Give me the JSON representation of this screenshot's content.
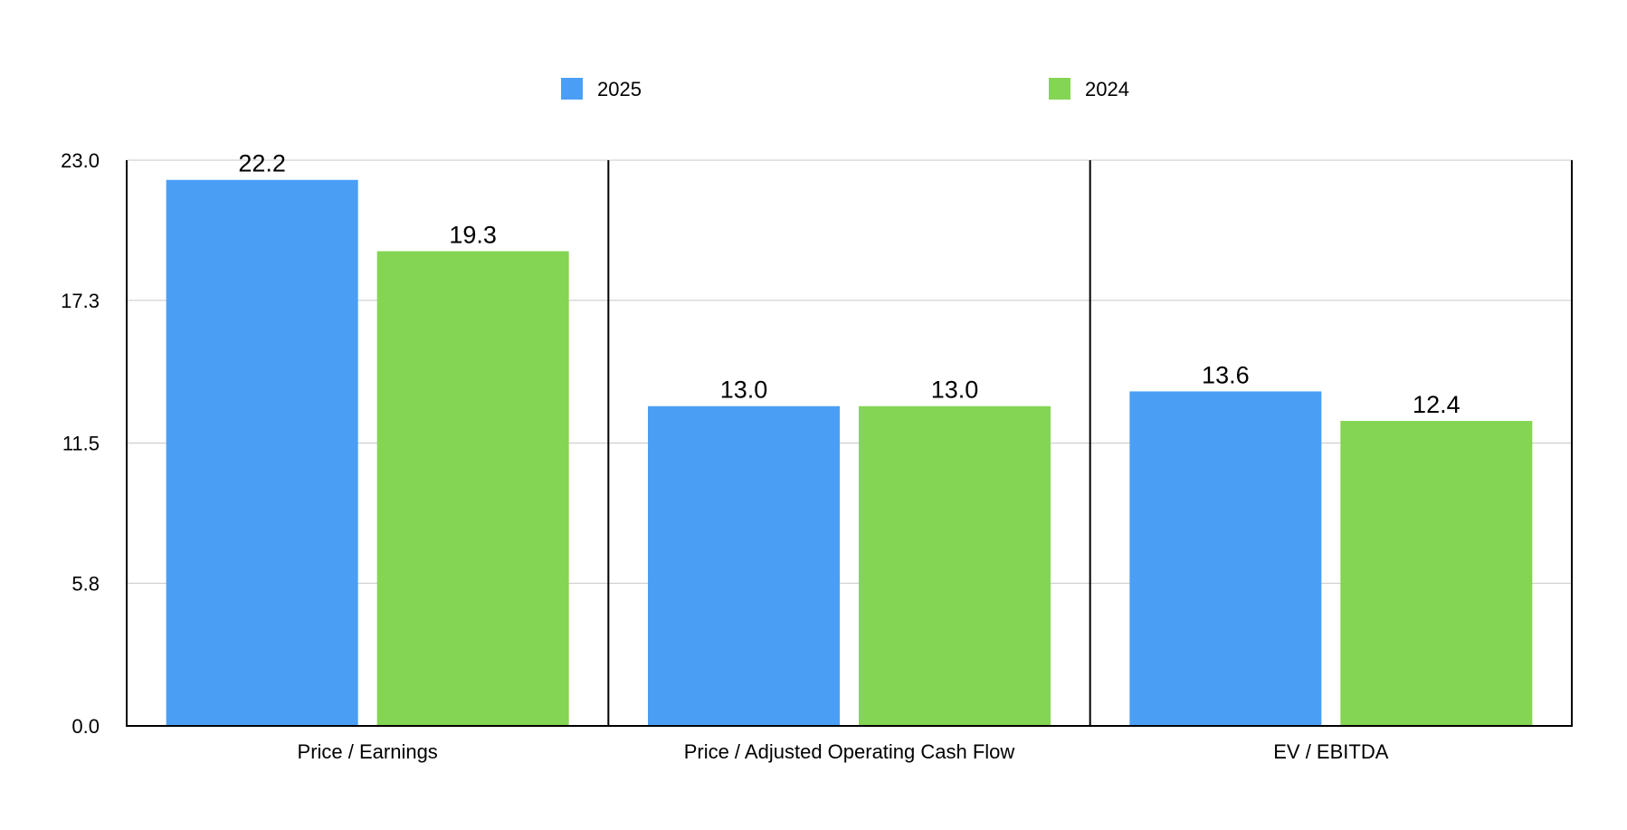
{
  "chart_data": {
    "type": "bar",
    "title": "",
    "xlabel": "",
    "ylabel": "",
    "categories": [
      "Price / Earnings",
      "Price / Adjusted Operating Cash Flow",
      "EV / EBITDA"
    ],
    "series": [
      {
        "name": "2025",
        "color": "#4a9ff5",
        "values": [
          22.2,
          13.0,
          13.6
        ],
        "labels": [
          "22.2",
          "13.0",
          "13.6"
        ]
      },
      {
        "name": "2024",
        "color": "#84d553",
        "values": [
          19.3,
          13.0,
          12.4
        ],
        "labels": [
          "19.3",
          "13.0",
          "12.4"
        ]
      }
    ],
    "ylim": [
      0,
      23.0
    ],
    "yticks": [
      0.0,
      5.8,
      11.5,
      17.3,
      23.0
    ],
    "ytick_labels": [
      "0.0",
      "5.8",
      "11.5",
      "17.3",
      "23.0"
    ],
    "grid": true,
    "legend_position": "top-center"
  }
}
